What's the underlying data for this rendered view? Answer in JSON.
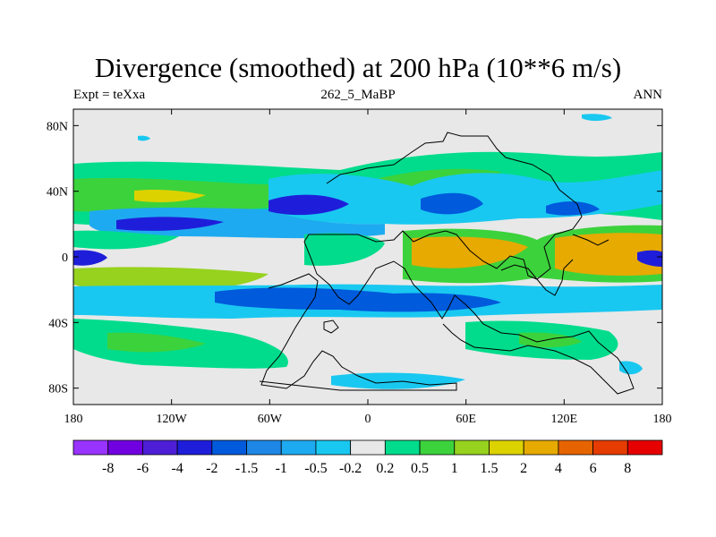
{
  "map": {
    "title": "Divergence (smoothed) at 200 hPa (10**6 m/s)",
    "left_subtitle": "Expt = teXxa",
    "center_subtitle": "262_5_MaBP",
    "right_subtitle": "ANN",
    "lat_ticks": [
      {
        "value": 80,
        "label": "80N"
      },
      {
        "value": 40,
        "label": "40N"
      },
      {
        "value": 0,
        "label": "0"
      },
      {
        "value": -40,
        "label": "40S"
      },
      {
        "value": -80,
        "label": "80S"
      }
    ],
    "lon_ticks": [
      {
        "value": -180,
        "label": "180"
      },
      {
        "value": -120,
        "label": "120W"
      },
      {
        "value": -60,
        "label": "60W"
      },
      {
        "value": 0,
        "label": "0"
      },
      {
        "value": 60,
        "label": "60E"
      },
      {
        "value": 120,
        "label": "120E"
      },
      {
        "value": 180,
        "label": "180"
      }
    ]
  },
  "colorbar": {
    "colors": [
      "#9933ff",
      "#7000e0",
      "#4d1ed6",
      "#1e1eda",
      "#005adc",
      "#1e87e6",
      "#1eaaf0",
      "#19c8f0",
      "#e8e8e8",
      "#00dc8c",
      "#3cd23c",
      "#96d21e",
      "#dcd200",
      "#e6aa00",
      "#e66400",
      "#e63c00",
      "#e60000"
    ],
    "labels": [
      "-8",
      "-6",
      "-4",
      "-2",
      "-1.5",
      "-1",
      "-0.5",
      "-0.2",
      "0.2",
      "0.5",
      "1",
      "1.5",
      "2",
      "4",
      "6",
      "8"
    ]
  }
}
